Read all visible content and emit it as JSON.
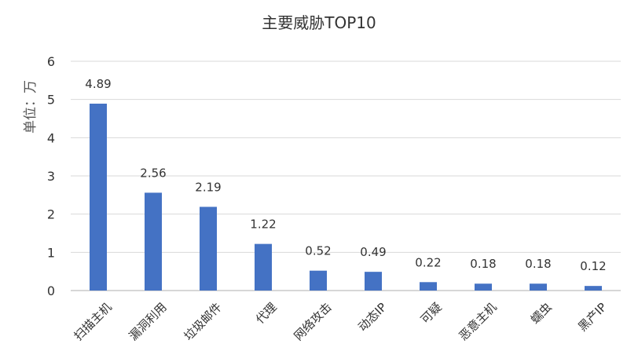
{
  "chart_data": {
    "type": "bar",
    "title": "主要威胁TOP10",
    "xlabel": "",
    "ylabel": "单位：万",
    "categories": [
      "扫描主机",
      "漏洞利用",
      "垃圾邮件",
      "代理",
      "网络攻击",
      "动态IP",
      "可疑",
      "恶意主机",
      "蠕虫",
      "黑产IP"
    ],
    "values": [
      4.89,
      2.56,
      2.19,
      1.22,
      0.52,
      0.49,
      0.22,
      0.18,
      0.18,
      0.12
    ],
    "data_labels": [
      "4.89",
      "2.56",
      "2.19",
      "1.22",
      "0.52",
      "0.49",
      "0.22",
      "0.18",
      "0.18",
      "0.12"
    ],
    "ylim": [
      0,
      6
    ],
    "yticks": [
      "0",
      "1",
      "2",
      "3",
      "4",
      "5",
      "6"
    ],
    "grid": true,
    "bar_color": "#4472c4"
  }
}
